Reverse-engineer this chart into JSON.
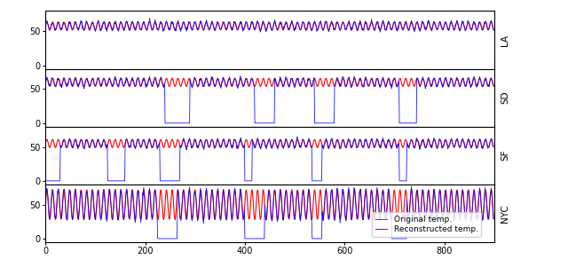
{
  "n_points": 900,
  "cities": [
    "LA",
    "SD",
    "SF",
    "NYC"
  ],
  "ylim": [
    -5,
    80
  ],
  "yticks": [
    0,
    50
  ],
  "xlim": [
    0,
    900
  ],
  "xticks": [
    0,
    200,
    400,
    600,
    800
  ],
  "legend_labels": [
    "Original temp.",
    "Reconstructed temp."
  ],
  "orig_color": "blue",
  "recon_color": "red",
  "la_base": 58,
  "la_amp": 6,
  "la_freq": 0.55,
  "sd_base": 60,
  "sd_amp": 6,
  "sd_freq": 0.55,
  "sd_drop_intervals": [
    [
      240,
      290
    ],
    [
      420,
      460
    ],
    [
      540,
      580
    ],
    [
      710,
      745
    ]
  ],
  "sf_base": 55,
  "sf_amp": 6,
  "sf_freq": 0.55,
  "sf_drop_intervals": [
    [
      0,
      30
    ],
    [
      125,
      160
    ],
    [
      230,
      270
    ],
    [
      400,
      415
    ],
    [
      535,
      555
    ],
    [
      710,
      725
    ]
  ],
  "nyc_base": 50,
  "nyc_amp": 22,
  "nyc_freq": 0.55,
  "nyc_drop_intervals": [
    [
      225,
      265
    ],
    [
      400,
      440
    ],
    [
      535,
      555
    ],
    [
      695,
      725
    ]
  ],
  "figsize": [
    6.4,
    3.1
  ],
  "dpi": 100
}
